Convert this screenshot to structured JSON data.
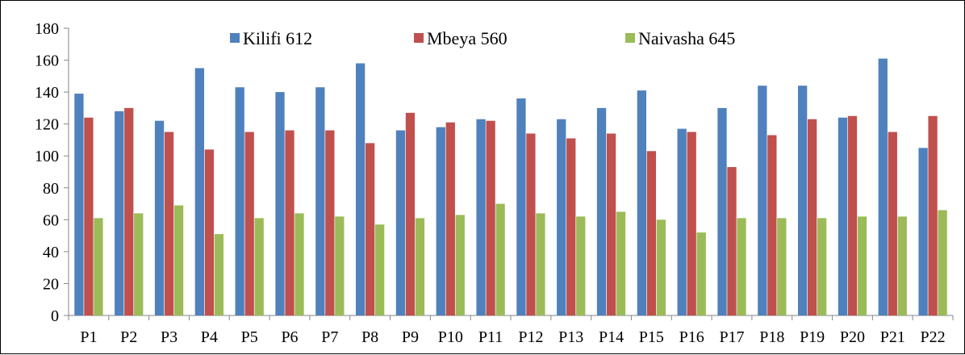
{
  "chart_data": {
    "type": "bar",
    "title": "",
    "xlabel": "",
    "ylabel": "",
    "ylim": [
      0,
      180
    ],
    "yticks": [
      0,
      20,
      40,
      60,
      80,
      100,
      120,
      140,
      160,
      180
    ],
    "grid": false,
    "legend_position": "top-center",
    "categories": [
      "P1",
      "P2",
      "P3",
      "P4",
      "P5",
      "P6",
      "P7",
      "P8",
      "P9",
      "P10",
      "P11",
      "P12",
      "P13",
      "P14",
      "P15",
      "P16",
      "P17",
      "P18",
      "P19",
      "P20",
      "P21",
      "P22"
    ],
    "series": [
      {
        "name": "Kilifi 612",
        "color": "#4F81BD",
        "values": [
          139,
          128,
          122,
          155,
          143,
          140,
          143,
          158,
          116,
          118,
          123,
          136,
          123,
          130,
          141,
          117,
          130,
          144,
          144,
          124,
          161,
          105
        ]
      },
      {
        "name": "Mbeya 560",
        "color": "#C0504D",
        "values": [
          124,
          130,
          115,
          104,
          115,
          116,
          116,
          108,
          127,
          121,
          122,
          114,
          111,
          114,
          103,
          115,
          93,
          113,
          123,
          125,
          115,
          125
        ]
      },
      {
        "name": "Naivasha 645",
        "color": "#9BBB59",
        "values": [
          61,
          64,
          69,
          51,
          61,
          64,
          62,
          57,
          61,
          63,
          70,
          64,
          62,
          65,
          60,
          52,
          61,
          61,
          61,
          62,
          62,
          66
        ]
      }
    ]
  }
}
